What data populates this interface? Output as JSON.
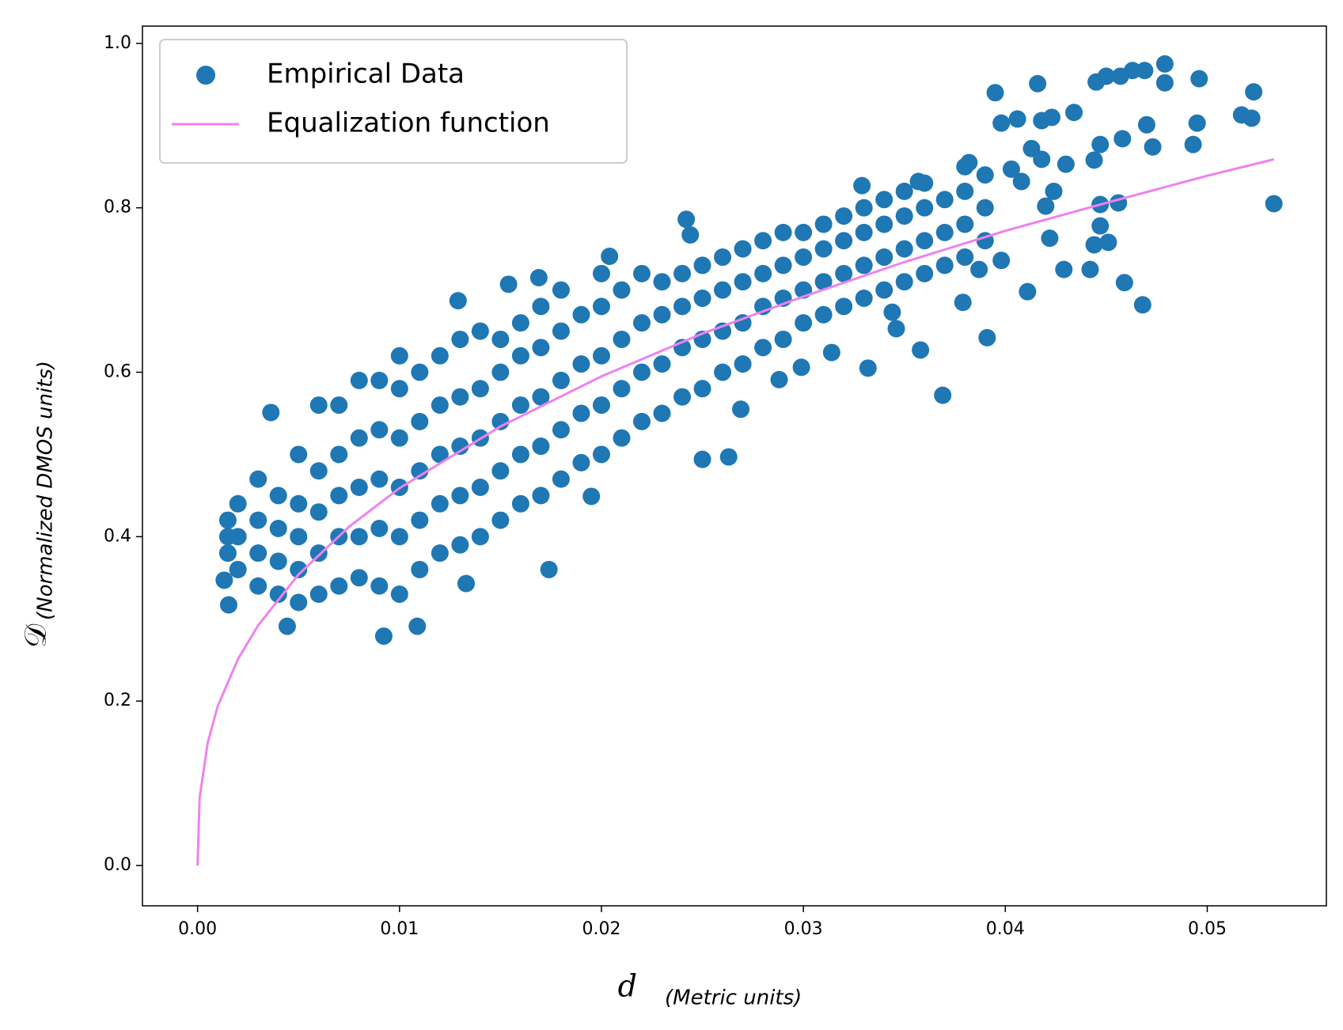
{
  "chart_data": {
    "type": "scatter",
    "xlabel": "d",
    "xlabel_note": "(Metric units)",
    "ylabel": "𝒟",
    "ylabel_note": "(Normalized DMOS units)",
    "xlim": [
      -0.00273,
      0.0559
    ],
    "ylim": [
      -0.049,
      1.021
    ],
    "xticks": [
      {
        "value": 0,
        "label": "0.00"
      },
      0.01,
      0.02,
      0.03,
      0.04,
      0.05
    ],
    "yticks": [
      {
        "value": 0,
        "label": "0.0"
      },
      0.2,
      0.4,
      0.6,
      0.8,
      {
        "value": 1,
        "label": "1.0"
      }
    ],
    "legend": "upper left",
    "series": [
      {
        "name": "Empirical Data",
        "color": "#1f77b4",
        "style": "markers",
        "x": [
          0.0015,
          0.0015,
          0.0015,
          0.002,
          0.002,
          0.002,
          0.003,
          0.003,
          0.003,
          0.003,
          0.004,
          0.004,
          0.004,
          0.004,
          0.005,
          0.005,
          0.005,
          0.005,
          0.005,
          0.006,
          0.006,
          0.006,
          0.006,
          0.006,
          0.007,
          0.007,
          0.007,
          0.007,
          0.007,
          0.008,
          0.008,
          0.008,
          0.008,
          0.008,
          0.009,
          0.009,
          0.009,
          0.009,
          0.009,
          0.01,
          0.01,
          0.01,
          0.01,
          0.01,
          0.01,
          0.011,
          0.011,
          0.011,
          0.011,
          0.011,
          0.012,
          0.012,
          0.012,
          0.012,
          0.012,
          0.013,
          0.013,
          0.013,
          0.013,
          0.013,
          0.014,
          0.014,
          0.014,
          0.014,
          0.014,
          0.015,
          0.015,
          0.015,
          0.015,
          0.015,
          0.016,
          0.016,
          0.016,
          0.016,
          0.016,
          0.017,
          0.017,
          0.017,
          0.017,
          0.017,
          0.018,
          0.018,
          0.018,
          0.018,
          0.018,
          0.019,
          0.019,
          0.019,
          0.019,
          0.02,
          0.02,
          0.02,
          0.02,
          0.02,
          0.021,
          0.021,
          0.021,
          0.021,
          0.022,
          0.022,
          0.022,
          0.022,
          0.023,
          0.023,
          0.023,
          0.023,
          0.024,
          0.024,
          0.024,
          0.024,
          0.025,
          0.025,
          0.025,
          0.025,
          0.026,
          0.026,
          0.026,
          0.026,
          0.027,
          0.027,
          0.027,
          0.027,
          0.028,
          0.028,
          0.028,
          0.028,
          0.029,
          0.029,
          0.029,
          0.029,
          0.03,
          0.03,
          0.03,
          0.03,
          0.031,
          0.031,
          0.031,
          0.031,
          0.032,
          0.032,
          0.032,
          0.032,
          0.033,
          0.033,
          0.033,
          0.033,
          0.034,
          0.034,
          0.034,
          0.034,
          0.035,
          0.035,
          0.035,
          0.035,
          0.036,
          0.036,
          0.036,
          0.036,
          0.037,
          0.037,
          0.037,
          0.038,
          0.038,
          0.038,
          0.038,
          0.039,
          0.039,
          0.039,
          0.00363,
          0.00154,
          0.00132,
          0.00444,
          0.00922,
          0.01088,
          0.0174,
          0.0133,
          0.0129,
          0.0154,
          0.0169,
          0.0204,
          0.0242,
          0.0244,
          0.0263,
          0.025,
          0.0269,
          0.0195,
          0.0332,
          0.0369,
          0.0358,
          0.0391,
          0.0395,
          0.0416,
          0.0398,
          0.0406,
          0.0403,
          0.0418,
          0.0413,
          0.0418,
          0.0423,
          0.0424,
          0.0434,
          0.043,
          0.0422,
          0.0429,
          0.0442,
          0.0444,
          0.0445,
          0.045,
          0.0457,
          0.0463,
          0.0469,
          0.0479,
          0.0479,
          0.0496,
          0.0523,
          0.0517,
          0.0522,
          0.0495,
          0.0493,
          0.0473,
          0.047,
          0.0458,
          0.0447,
          0.0447,
          0.0447,
          0.0451,
          0.0444,
          0.0456,
          0.0459,
          0.0468,
          0.0533,
          0.0411,
          0.0398,
          0.0387,
          0.0379,
          0.0346,
          0.0344,
          0.0314,
          0.0299,
          0.0288,
          0.0408,
          0.042,
          0.0382,
          0.0329,
          0.0357
        ],
        "values": [
          0.38,
          0.4,
          0.42,
          0.36,
          0.4,
          0.44,
          0.34,
          0.38,
          0.42,
          0.47,
          0.33,
          0.37,
          0.41,
          0.45,
          0.32,
          0.36,
          0.4,
          0.44,
          0.5,
          0.33,
          0.38,
          0.43,
          0.48,
          0.56,
          0.34,
          0.4,
          0.45,
          0.5,
          0.56,
          0.35,
          0.4,
          0.46,
          0.52,
          0.59,
          0.34,
          0.41,
          0.47,
          0.53,
          0.59,
          0.33,
          0.4,
          0.46,
          0.52,
          0.58,
          0.62,
          0.36,
          0.42,
          0.48,
          0.54,
          0.6,
          0.38,
          0.44,
          0.5,
          0.56,
          0.62,
          0.39,
          0.45,
          0.51,
          0.57,
          0.64,
          0.4,
          0.46,
          0.52,
          0.58,
          0.65,
          0.42,
          0.48,
          0.54,
          0.6,
          0.64,
          0.44,
          0.5,
          0.56,
          0.62,
          0.66,
          0.45,
          0.51,
          0.57,
          0.63,
          0.68,
          0.47,
          0.53,
          0.59,
          0.65,
          0.7,
          0.49,
          0.55,
          0.61,
          0.67,
          0.5,
          0.56,
          0.62,
          0.68,
          0.72,
          0.52,
          0.58,
          0.64,
          0.7,
          0.54,
          0.6,
          0.66,
          0.72,
          0.55,
          0.61,
          0.67,
          0.71,
          0.57,
          0.63,
          0.68,
          0.72,
          0.58,
          0.64,
          0.69,
          0.73,
          0.6,
          0.65,
          0.7,
          0.74,
          0.61,
          0.66,
          0.71,
          0.75,
          0.63,
          0.68,
          0.72,
          0.76,
          0.64,
          0.69,
          0.73,
          0.77,
          0.66,
          0.7,
          0.74,
          0.77,
          0.67,
          0.71,
          0.75,
          0.78,
          0.68,
          0.72,
          0.76,
          0.79,
          0.69,
          0.73,
          0.77,
          0.8,
          0.7,
          0.74,
          0.78,
          0.81,
          0.71,
          0.75,
          0.79,
          0.82,
          0.72,
          0.76,
          0.8,
          0.83,
          0.73,
          0.77,
          0.81,
          0.74,
          0.78,
          0.82,
          0.85,
          0.76,
          0.8,
          0.84,
          0.551,
          0.317,
          0.347,
          0.291,
          0.279,
          0.291,
          0.36,
          0.343,
          0.687,
          0.707,
          0.715,
          0.741,
          0.786,
          0.767,
          0.497,
          0.494,
          0.555,
          0.449,
          0.605,
          0.572,
          0.627,
          0.642,
          0.94,
          0.951,
          0.903,
          0.908,
          0.847,
          0.906,
          0.872,
          0.859,
          0.91,
          0.82,
          0.916,
          0.853,
          0.763,
          0.725,
          0.725,
          0.858,
          0.953,
          0.96,
          0.96,
          0.967,
          0.967,
          0.975,
          0.952,
          0.957,
          0.941,
          0.913,
          0.909,
          0.903,
          0.877,
          0.874,
          0.901,
          0.884,
          0.877,
          0.804,
          0.778,
          0.758,
          0.755,
          0.806,
          0.709,
          0.682,
          0.805,
          0.698,
          0.736,
          0.725,
          0.685,
          0.653,
          0.673,
          0.624,
          0.606,
          0.591,
          0.832,
          0.802,
          0.855,
          0.827,
          0.832
        ]
      },
      {
        "name": "Equalization function",
        "color": "#ee82ee",
        "style": "line",
        "x": [
          0,
          0.0001,
          0.0005,
          0.001,
          0.002,
          0.003,
          0.005,
          0.0075,
          0.01,
          0.015,
          0.02,
          0.025,
          0.03,
          0.035,
          0.04,
          0.045,
          0.05,
          0.0533
        ],
        "values": [
          0,
          0.082,
          0.149,
          0.194,
          0.251,
          0.292,
          0.354,
          0.412,
          0.459,
          0.534,
          0.595,
          0.647,
          0.692,
          0.734,
          0.772,
          0.806,
          0.839,
          0.859
        ]
      }
    ]
  }
}
